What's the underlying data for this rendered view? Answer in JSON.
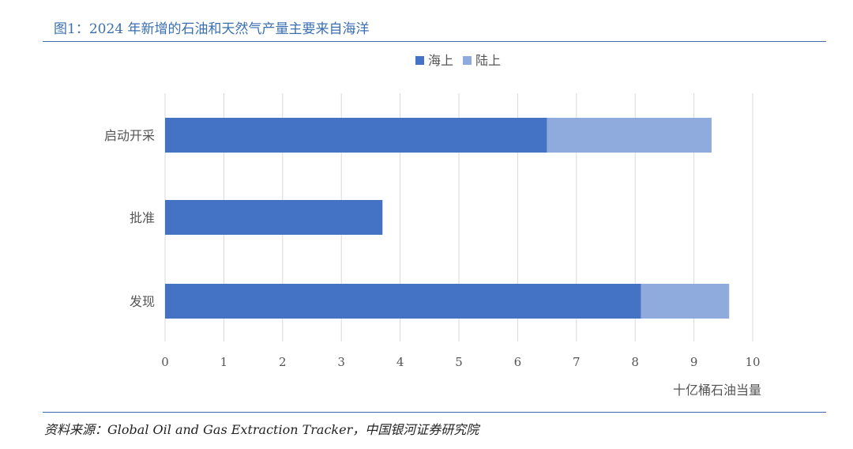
{
  "title": "图1：2024 年新增的石油和天然气产量主要来自海洋",
  "source": "资料来源：Global Oil and Gas Extraction Tracker，中国银河证券研究院",
  "colors": {
    "offshore": "#4472c4",
    "onshore": "#8faadc",
    "accent": "#3d6aa8",
    "grid": "#d9d9d9"
  },
  "chart_data": {
    "type": "bar",
    "orientation": "horizontal",
    "stacked": true,
    "categories": [
      "启动开采",
      "批准",
      "发现"
    ],
    "series": [
      {
        "name": "海上",
        "values": [
          6.5,
          3.7,
          8.1
        ]
      },
      {
        "name": "陆上",
        "values": [
          2.8,
          0,
          1.5
        ]
      }
    ],
    "xlabel": "十亿桶石油当量",
    "ylabel": "",
    "xlim": [
      0,
      10
    ],
    "xticks": [
      "0",
      "1",
      "2",
      "3",
      "4",
      "5",
      "6",
      "7",
      "8",
      "9",
      "10"
    ],
    "grid": true,
    "legend": "top-center"
  }
}
